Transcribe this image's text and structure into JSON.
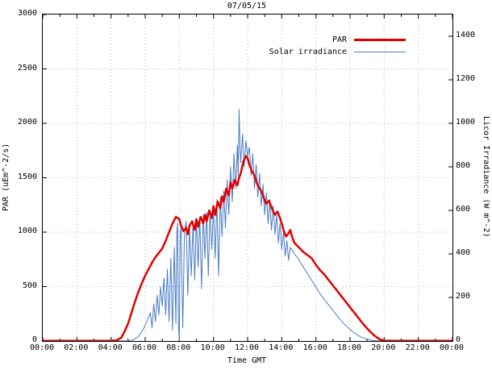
{
  "chart_data": {
    "type": "line",
    "title": "07/05/15",
    "xlabel": "Time GMT",
    "ylabel_left": "PAR (uEm^-2/s)",
    "ylabel_right": "Licor Irradiance (W m^-2)",
    "grid": true,
    "legend_position": "top-right-inside",
    "x_axis": {
      "min": 0,
      "max": 24,
      "minor_step": 1,
      "tick_values": [
        0,
        2,
        4,
        6,
        8,
        10,
        12,
        14,
        16,
        18,
        20,
        22,
        24
      ],
      "tick_labels": [
        "00:00",
        "02:00",
        "04:00",
        "06:00",
        "08:00",
        "10:00",
        "12:00",
        "14:00",
        "16:00",
        "18:00",
        "20:00",
        "22:00",
        "00:00"
      ]
    },
    "y_left_axis": {
      "min": 0,
      "max": 3000,
      "tick_values": [
        0,
        500,
        1000,
        1500,
        2000,
        2500,
        3000
      ]
    },
    "y_right_axis": {
      "min": 0,
      "max": 1500,
      "tick_values": [
        0,
        200,
        400,
        600,
        800,
        1000,
        1200,
        1400
      ]
    },
    "colors": {
      "par": "#e00000",
      "solar": "#4a7cc7",
      "grid": "#b5b5b5",
      "border": "#000000"
    },
    "series": [
      {
        "name": "PAR",
        "axis": "left",
        "color": "#e00000",
        "width": 2.5,
        "points": [
          [
            0,
            2
          ],
          [
            0.5,
            2
          ],
          [
            1,
            2
          ],
          [
            1.5,
            2
          ],
          [
            2,
            2
          ],
          [
            2.5,
            2
          ],
          [
            3,
            2
          ],
          [
            3.5,
            2
          ],
          [
            4,
            3
          ],
          [
            4.3,
            5
          ],
          [
            4.6,
            30
          ],
          [
            4.8,
            90
          ],
          [
            5,
            160
          ],
          [
            5.2,
            260
          ],
          [
            5.4,
            360
          ],
          [
            5.6,
            450
          ],
          [
            5.8,
            530
          ],
          [
            6,
            600
          ],
          [
            6.2,
            660
          ],
          [
            6.4,
            720
          ],
          [
            6.6,
            770
          ],
          [
            6.8,
            810
          ],
          [
            7,
            850
          ],
          [
            7.2,
            920
          ],
          [
            7.4,
            1000
          ],
          [
            7.6,
            1080
          ],
          [
            7.8,
            1140
          ],
          [
            8,
            1120
          ],
          [
            8.1,
            1060
          ],
          [
            8.25,
            1010
          ],
          [
            8.4,
            1040
          ],
          [
            8.5,
            980
          ],
          [
            8.6,
            1060
          ],
          [
            8.75,
            1100
          ],
          [
            8.9,
            1020
          ],
          [
            9,
            1120
          ],
          [
            9.1,
            1050
          ],
          [
            9.25,
            1140
          ],
          [
            9.4,
            1080
          ],
          [
            9.5,
            1160
          ],
          [
            9.6,
            1100
          ],
          [
            9.75,
            1200
          ],
          [
            9.9,
            1130
          ],
          [
            10,
            1240
          ],
          [
            10.1,
            1160
          ],
          [
            10.25,
            1280
          ],
          [
            10.4,
            1220
          ],
          [
            10.5,
            1330
          ],
          [
            10.6,
            1280
          ],
          [
            10.75,
            1400
          ],
          [
            10.9,
            1340
          ],
          [
            11,
            1460
          ],
          [
            11.1,
            1400
          ],
          [
            11.25,
            1480
          ],
          [
            11.4,
            1430
          ],
          [
            11.5,
            1500
          ],
          [
            11.6,
            1540
          ],
          [
            11.75,
            1650
          ],
          [
            11.9,
            1700
          ],
          [
            12,
            1680
          ],
          [
            12.1,
            1620
          ],
          [
            12.25,
            1560
          ],
          [
            12.4,
            1520
          ],
          [
            12.5,
            1470
          ],
          [
            12.6,
            1430
          ],
          [
            12.75,
            1390
          ],
          [
            12.9,
            1340
          ],
          [
            13,
            1290
          ],
          [
            13.1,
            1260
          ],
          [
            13.25,
            1290
          ],
          [
            13.4,
            1230
          ],
          [
            13.5,
            1190
          ],
          [
            13.6,
            1160
          ],
          [
            13.75,
            1190
          ],
          [
            13.9,
            1130
          ],
          [
            14,
            1080
          ],
          [
            14.1,
            1020
          ],
          [
            14.25,
            960
          ],
          [
            14.4,
            990
          ],
          [
            14.5,
            1020
          ],
          [
            14.6,
            960
          ],
          [
            14.75,
            900
          ],
          [
            15,
            860
          ],
          [
            15.25,
            820
          ],
          [
            15.5,
            790
          ],
          [
            15.75,
            760
          ],
          [
            16,
            700
          ],
          [
            16.25,
            650
          ],
          [
            16.5,
            610
          ],
          [
            16.75,
            560
          ],
          [
            17,
            510
          ],
          [
            17.25,
            460
          ],
          [
            17.5,
            410
          ],
          [
            17.75,
            360
          ],
          [
            18,
            310
          ],
          [
            18.25,
            260
          ],
          [
            18.5,
            210
          ],
          [
            18.75,
            160
          ],
          [
            19,
            115
          ],
          [
            19.25,
            75
          ],
          [
            19.5,
            40
          ],
          [
            19.75,
            15
          ],
          [
            20,
            4
          ],
          [
            20.5,
            2
          ],
          [
            21,
            2
          ],
          [
            21.5,
            2
          ],
          [
            22,
            2
          ],
          [
            22.5,
            2
          ],
          [
            23,
            2
          ],
          [
            23.5,
            2
          ],
          [
            24,
            2
          ]
        ]
      },
      {
        "name": "Solar irradiance",
        "axis": "right",
        "color": "#4a7cc7",
        "width": 1,
        "points": [
          [
            0,
            0
          ],
          [
            1,
            0
          ],
          [
            2,
            0
          ],
          [
            3,
            0
          ],
          [
            4,
            0
          ],
          [
            4.5,
            0
          ],
          [
            5,
            1
          ],
          [
            5.3,
            5
          ],
          [
            5.6,
            20
          ],
          [
            5.9,
            55
          ],
          [
            6.1,
            90
          ],
          [
            6.3,
            130
          ],
          [
            6.4,
            60
          ],
          [
            6.5,
            170
          ],
          [
            6.6,
            90
          ],
          [
            6.7,
            210
          ],
          [
            6.8,
            120
          ],
          [
            6.9,
            250
          ],
          [
            7,
            160
          ],
          [
            7.1,
            290
          ],
          [
            7.2,
            120
          ],
          [
            7.3,
            330
          ],
          [
            7.4,
            90
          ],
          [
            7.5,
            380
          ],
          [
            7.6,
            50
          ],
          [
            7.7,
            430
          ],
          [
            7.8,
            80
          ],
          [
            7.85,
            500
          ],
          [
            7.9,
            540
          ],
          [
            7.95,
            60
          ],
          [
            8,
            5
          ],
          [
            8.05,
            480
          ],
          [
            8.1,
            530
          ],
          [
            8.2,
            60
          ],
          [
            8.3,
            500
          ],
          [
            8.4,
            550
          ],
          [
            8.5,
            210
          ],
          [
            8.6,
            520
          ],
          [
            8.7,
            300
          ],
          [
            8.8,
            545
          ],
          [
            8.9,
            280
          ],
          [
            9,
            560
          ],
          [
            9.1,
            340
          ],
          [
            9.2,
            570
          ],
          [
            9.3,
            240
          ],
          [
            9.4,
            580
          ],
          [
            9.5,
            380
          ],
          [
            9.6,
            590
          ],
          [
            9.7,
            300
          ],
          [
            9.8,
            600
          ],
          [
            9.9,
            420
          ],
          [
            10,
            620
          ],
          [
            10.1,
            380
          ],
          [
            10.2,
            650
          ],
          [
            10.3,
            300
          ],
          [
            10.4,
            660
          ],
          [
            10.5,
            480
          ],
          [
            10.6,
            690
          ],
          [
            10.7,
            520
          ],
          [
            10.8,
            740
          ],
          [
            10.9,
            580
          ],
          [
            11,
            800
          ],
          [
            11.1,
            640
          ],
          [
            11.2,
            860
          ],
          [
            11.3,
            700
          ],
          [
            11.4,
            900
          ],
          [
            11.45,
            760
          ],
          [
            11.5,
            1065
          ],
          [
            11.55,
            900
          ],
          [
            11.6,
            820
          ],
          [
            11.7,
            950
          ],
          [
            11.8,
            800
          ],
          [
            11.9,
            920
          ],
          [
            12,
            850
          ],
          [
            12.1,
            890
          ],
          [
            12.2,
            760
          ],
          [
            12.3,
            860
          ],
          [
            12.4,
            700
          ],
          [
            12.5,
            810
          ],
          [
            12.6,
            660
          ],
          [
            12.7,
            770
          ],
          [
            12.8,
            620
          ],
          [
            12.9,
            720
          ],
          [
            13,
            580
          ],
          [
            13.1,
            680
          ],
          [
            13.2,
            540
          ],
          [
            13.3,
            650
          ],
          [
            13.4,
            510
          ],
          [
            13.5,
            620
          ],
          [
            13.6,
            490
          ],
          [
            13.7,
            580
          ],
          [
            13.8,
            450
          ],
          [
            13.9,
            540
          ],
          [
            14,
            420
          ],
          [
            14.1,
            500
          ],
          [
            14.2,
            390
          ],
          [
            14.3,
            460
          ],
          [
            14.4,
            370
          ],
          [
            14.5,
            430
          ],
          [
            14.7,
            405
          ],
          [
            14.9,
            385
          ],
          [
            15.1,
            360
          ],
          [
            15.3,
            335
          ],
          [
            15.5,
            310
          ],
          [
            15.7,
            285
          ],
          [
            15.9,
            260
          ],
          [
            16.1,
            235
          ],
          [
            16.3,
            210
          ],
          [
            16.5,
            190
          ],
          [
            16.7,
            170
          ],
          [
            16.9,
            150
          ],
          [
            17.1,
            130
          ],
          [
            17.3,
            110
          ],
          [
            17.5,
            92
          ],
          [
            17.7,
            75
          ],
          [
            17.9,
            60
          ],
          [
            18.1,
            46
          ],
          [
            18.3,
            34
          ],
          [
            18.5,
            24
          ],
          [
            18.7,
            16
          ],
          [
            19,
            8
          ],
          [
            19.3,
            3
          ],
          [
            19.6,
            1
          ],
          [
            20,
            0
          ],
          [
            21,
            0
          ],
          [
            22,
            0
          ],
          [
            23,
            0
          ],
          [
            24,
            0
          ]
        ]
      }
    ]
  }
}
